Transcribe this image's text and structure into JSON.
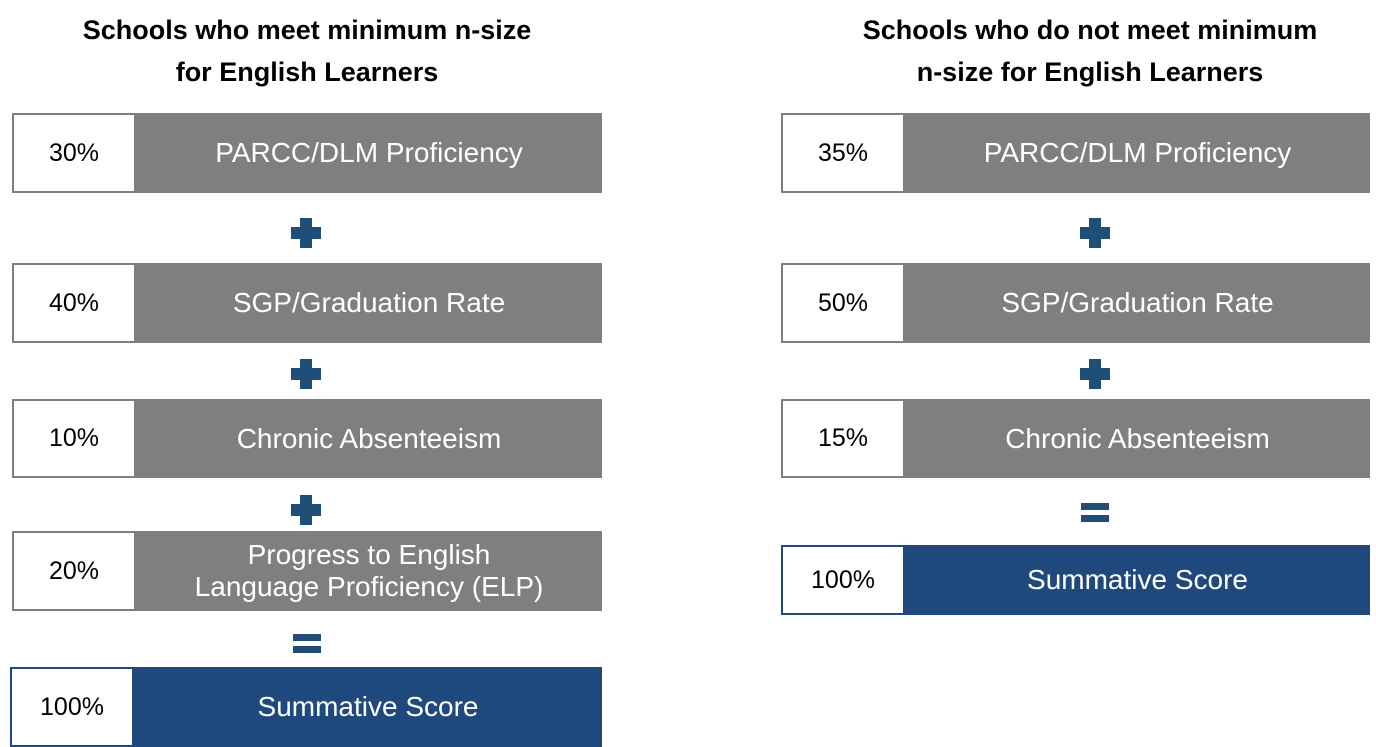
{
  "columns": [
    {
      "title": [
        "Schools who meet minimum n-size",
        "for English Learners"
      ],
      "rows": [
        {
          "percent": "30%",
          "label": [
            "PARCC/DLM Proficiency"
          ]
        },
        {
          "percent": "40%",
          "label": [
            "SGP/Graduation Rate"
          ]
        },
        {
          "percent": "10%",
          "label": [
            "Chronic Absenteeism"
          ]
        },
        {
          "percent": "20%",
          "label": [
            "Progress to English",
            "Language Proficiency (ELP)"
          ]
        }
      ],
      "total": {
        "percent": "100%",
        "label": [
          "Summative Score"
        ]
      }
    },
    {
      "title": [
        "Schools who do not meet minimum",
        "n-size for English Learners"
      ],
      "rows": [
        {
          "percent": "35%",
          "label": [
            "PARCC/DLM Proficiency"
          ]
        },
        {
          "percent": "50%",
          "label": [
            "SGP/Graduation Rate"
          ]
        },
        {
          "percent": "15%",
          "label": [
            "Chronic Absenteeism"
          ]
        }
      ],
      "total": {
        "percent": "100%",
        "label": [
          "Summative Score"
        ]
      }
    }
  ]
}
